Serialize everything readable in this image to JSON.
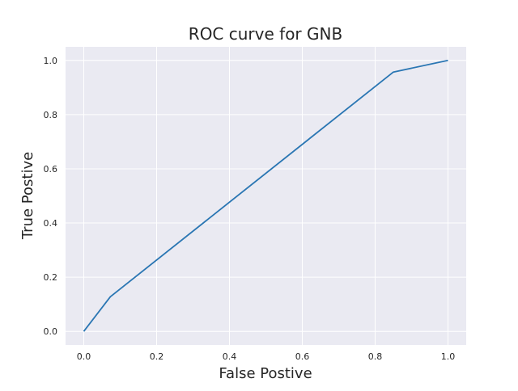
{
  "chart_data": {
    "type": "line",
    "title": "ROC curve for GNB",
    "xlabel": "False Postive",
    "ylabel": "True Postive",
    "xlim": [
      -0.05,
      1.05
    ],
    "ylim": [
      -0.05,
      1.05
    ],
    "xticks": [
      0.0,
      0.2,
      0.4,
      0.6,
      0.8,
      1.0
    ],
    "xtick_labels": [
      "0.0",
      "0.2",
      "0.4",
      "0.6",
      "0.8",
      "1.0"
    ],
    "yticks": [
      0.0,
      0.2,
      0.4,
      0.6,
      0.8,
      1.0
    ],
    "ytick_labels": [
      "0.0",
      "0.2",
      "0.4",
      "0.6",
      "0.8",
      "1.0"
    ],
    "grid": true,
    "series": [
      {
        "x": [
          0.0,
          0.073,
          0.85,
          1.0
        ],
        "y": [
          0.0,
          0.128,
          0.957,
          1.0
        ],
        "color": "#2a76b3"
      }
    ],
    "background_color": "#eaeaf2",
    "grid_color": "#ffffff"
  }
}
